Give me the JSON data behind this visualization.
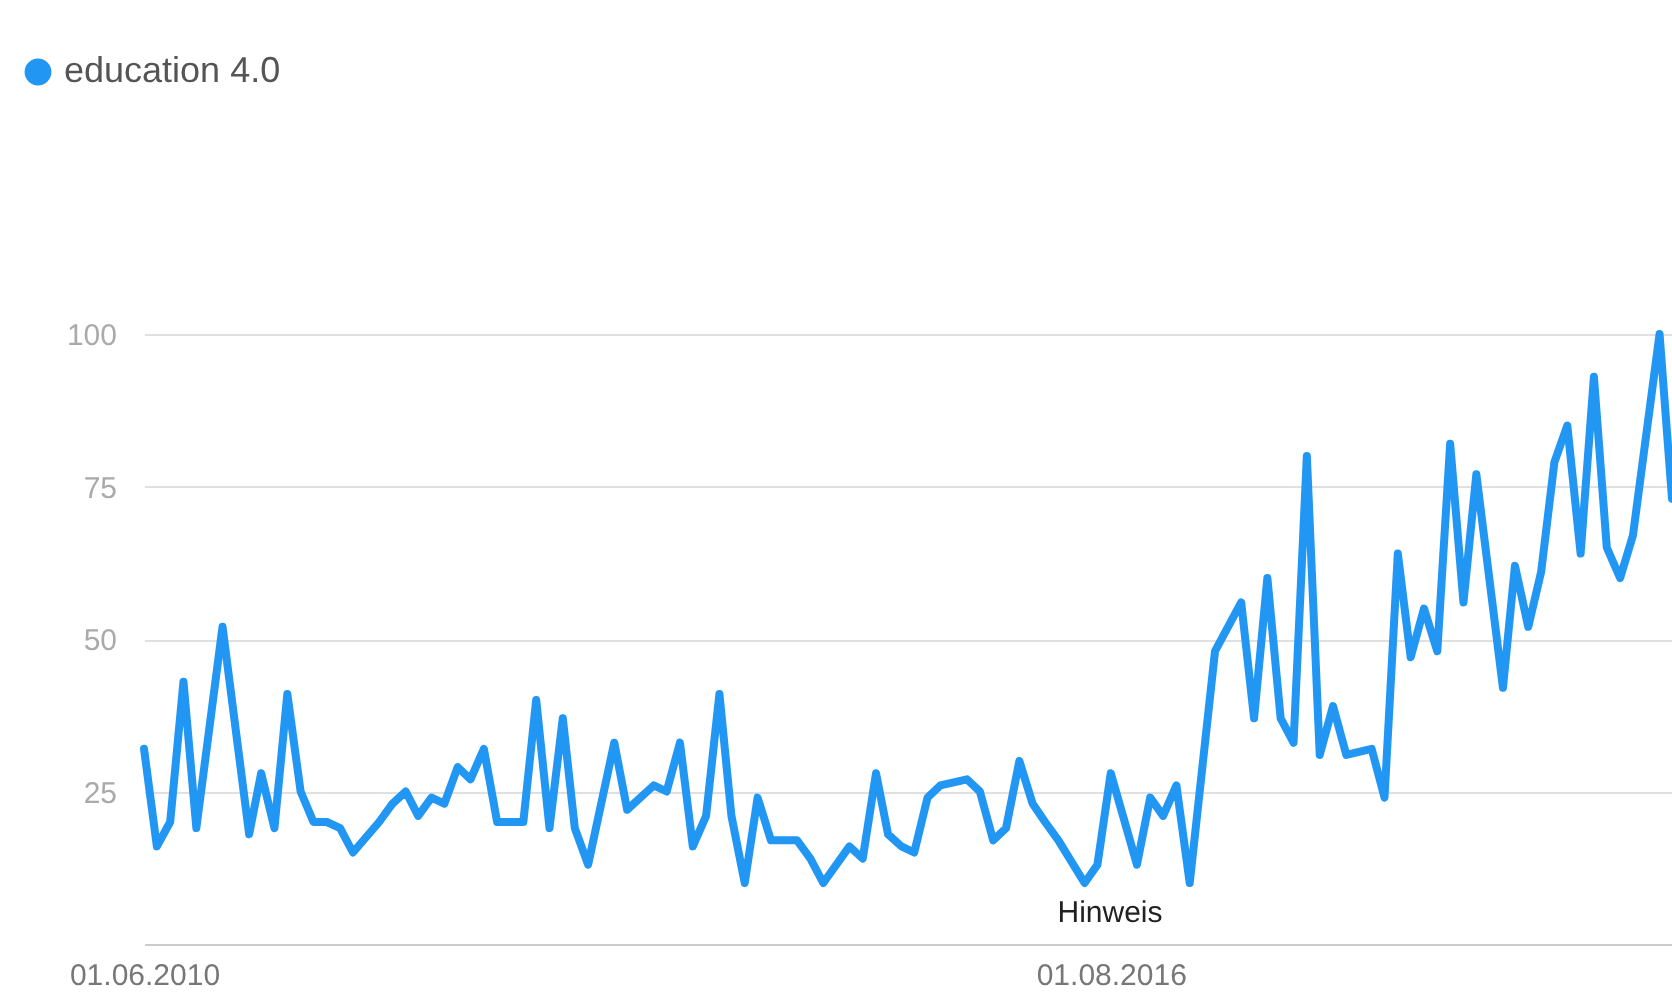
{
  "chart_data": {
    "type": "line",
    "x": [
      "2010-06",
      "2010-07",
      "2010-08",
      "2010-09",
      "2010-10",
      "2010-12",
      "2011-02",
      "2011-03",
      "2011-04",
      "2011-05",
      "2011-06",
      "2011-07",
      "2011-08",
      "2011-09",
      "2011-10",
      "2011-12",
      "2012-01",
      "2012-02",
      "2012-03",
      "2012-04",
      "2012-05",
      "2012-06",
      "2012-07",
      "2012-08",
      "2012-09",
      "2012-11",
      "2012-12",
      "2013-01",
      "2013-02",
      "2013-03",
      "2013-04",
      "2013-06",
      "2013-07",
      "2013-09",
      "2013-10",
      "2013-11",
      "2013-12",
      "2014-01",
      "2014-02",
      "2014-03",
      "2014-04",
      "2014-05",
      "2014-06",
      "2014-08",
      "2014-09",
      "2014-10",
      "2014-12",
      "2015-01",
      "2015-02",
      "2015-03",
      "2015-04",
      "2015-05",
      "2015-06",
      "2015-07",
      "2015-09",
      "2015-10",
      "2015-11",
      "2015-12",
      "2016-01",
      "2016-02",
      "2016-03",
      "2016-04",
      "2016-06",
      "2016-07",
      "2016-08",
      "2016-10",
      "2016-11",
      "2016-12",
      "2017-01",
      "2017-02",
      "2017-04",
      "2017-06",
      "2017-07",
      "2017-08",
      "2017-09",
      "2017-10",
      "2017-11",
      "2017-12",
      "2018-01",
      "2018-02",
      "2018-04",
      "2018-05",
      "2018-06",
      "2018-07",
      "2018-08",
      "2018-09",
      "2018-10",
      "2018-11",
      "2018-12",
      "2019-02",
      "2019-03",
      "2019-04",
      "2019-05",
      "2019-06",
      "2019-07",
      "2019-08",
      "2019-09",
      "2019-10",
      "2019-11",
      "2019-12",
      "2020-02",
      "2020-03"
    ],
    "series": [
      {
        "name": "education 4.0",
        "color": "#2196f3",
        "values": [
          32,
          16,
          20,
          43,
          19,
          52,
          18,
          28,
          19,
          41,
          25,
          20,
          20,
          19,
          15,
          20,
          23,
          25,
          21,
          24,
          23,
          29,
          27,
          32,
          20,
          20,
          40,
          19,
          37,
          19,
          13,
          33,
          22,
          26,
          25,
          33,
          16,
          21,
          41,
          21,
          10,
          24,
          17,
          17,
          14,
          10,
          16,
          14,
          28,
          18,
          16,
          15,
          24,
          26,
          27,
          25,
          17,
          19,
          30,
          23,
          20,
          17,
          10,
          13,
          28,
          13,
          24,
          21,
          26,
          10,
          48,
          56,
          37,
          60,
          37,
          33,
          80,
          31,
          39,
          31,
          32,
          24,
          64,
          47,
          55,
          48,
          82,
          56,
          77,
          42,
          62,
          52,
          61,
          79,
          85,
          64,
          93,
          65,
          60,
          67,
          100,
          73
        ]
      }
    ],
    "xlim": [
      "2010-06",
      "2020-03"
    ],
    "xticks": [
      {
        "value": "2010-06",
        "label": "01.06.2010"
      },
      {
        "value": "2016-08",
        "label": "01.08.2016"
      }
    ],
    "ylim": [
      0,
      100
    ],
    "yticks": [
      25,
      50,
      75,
      100
    ],
    "grid": "y",
    "legend": "top left",
    "marker": "none",
    "line_style": "solid",
    "annotations": [
      "Hinweis"
    ]
  }
}
